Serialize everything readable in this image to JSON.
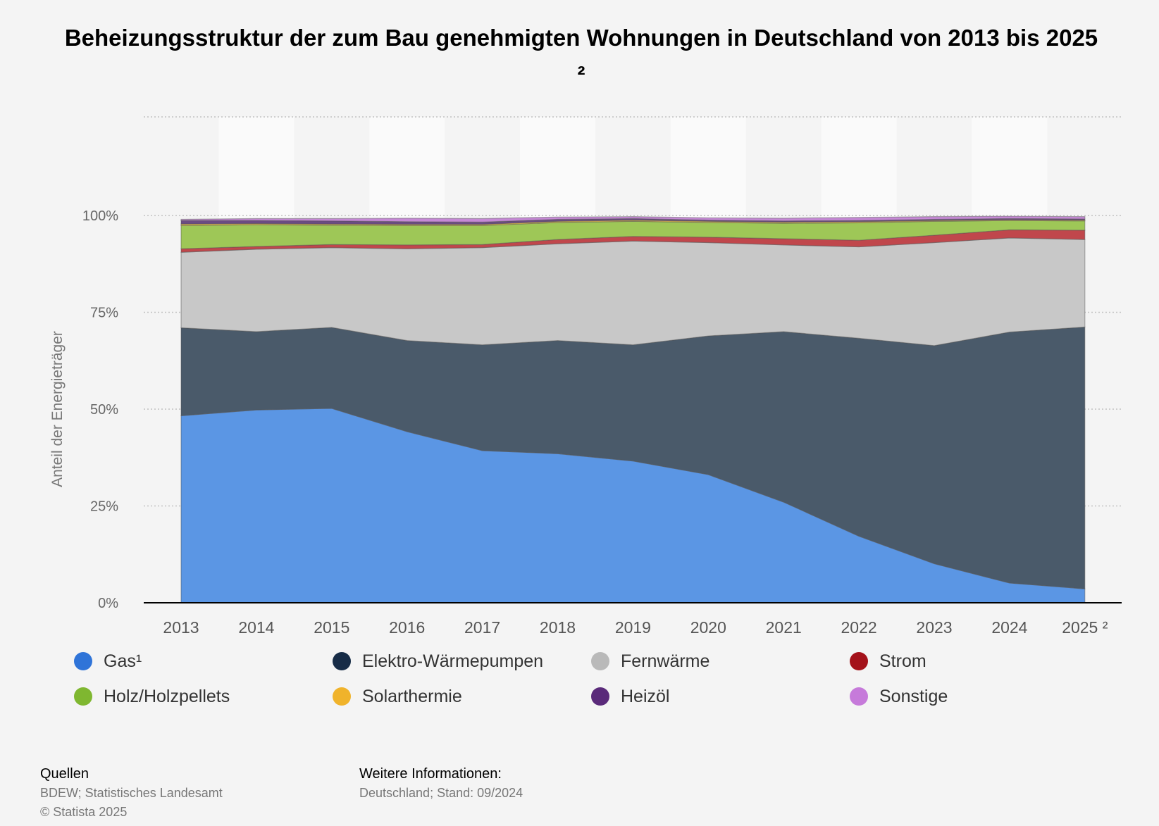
{
  "chart_data": {
    "type": "area",
    "stacked": true,
    "title": "Beheizungsstruktur der zum Bau genehmigten Wohnungen in Deutschland von 2013 bis 2025 ²",
    "ylabel": "Anteil der Energieträger",
    "xlabel": "",
    "ylim": [
      0,
      100
    ],
    "yticks": [
      "0%",
      "25%",
      "50%",
      "75%",
      "100%"
    ],
    "ytick_values": [
      0,
      25,
      50,
      75,
      100
    ],
    "categories": [
      "2013",
      "2014",
      "2015",
      "2016",
      "2017",
      "2018",
      "2019",
      "2020",
      "2021",
      "2022",
      "2023",
      "2024",
      "2025 ²"
    ],
    "grid": true,
    "legend_position": "bottom",
    "series": [
      {
        "name": "Gas¹",
        "color": "#5b96e4",
        "legend_color": "#2f74d8",
        "values": [
          48.3,
          49.8,
          50.2,
          44.2,
          39.3,
          38.5,
          36.6,
          33.1,
          26.0,
          17.2,
          10.1,
          5.1,
          3.6
        ]
      },
      {
        "name": "Elektro-Wärmepumpen",
        "color": "#4a5a6a",
        "legend_color": "#172c47",
        "values": [
          22.7,
          20.2,
          20.9,
          23.5,
          27.3,
          29.2,
          30.0,
          35.8,
          44.0,
          51.1,
          56.3,
          64.8,
          67.6
        ]
      },
      {
        "name": "Fernwärme",
        "color": "#c8c8c8",
        "legend_color": "#b9b9b9",
        "values": [
          19.5,
          21.3,
          20.6,
          23.7,
          25.1,
          25.0,
          26.8,
          24.1,
          22.4,
          23.6,
          26.6,
          24.3,
          22.6
        ]
      },
      {
        "name": "Strom",
        "color": "#c0474c",
        "legend_color": "#a4121a",
        "values": [
          0.9,
          0.7,
          0.8,
          1.0,
          0.8,
          1.1,
          1.2,
          1.4,
          1.6,
          1.7,
          1.9,
          2.1,
          2.4
        ]
      },
      {
        "name": "Holz/Holzpellets",
        "color": "#9ec757",
        "legend_color": "#7fb730",
        "values": [
          6.0,
          5.6,
          5.0,
          5.0,
          4.9,
          4.4,
          3.9,
          3.8,
          4.0,
          4.5,
          3.6,
          2.4,
          2.4
        ]
      },
      {
        "name": "Solarthermie",
        "color": "#e8bf4a",
        "legend_color": "#f0b32b",
        "values": [
          0.4,
          0.3,
          0.3,
          0.3,
          0.3,
          0.3,
          0.3,
          0.3,
          0.3,
          0.3,
          0.2,
          0.2,
          0.2
        ]
      },
      {
        "name": "Heizöl",
        "color": "#6b4b82",
        "legend_color": "#5a2a7a",
        "values": [
          0.9,
          0.8,
          0.8,
          0.7,
          0.6,
          0.5,
          0.4,
          0.3,
          0.3,
          0.3,
          0.3,
          0.3,
          0.3
        ]
      },
      {
        "name": "Sonstige",
        "color": "#c689d6",
        "legend_color": "#c67ada",
        "values": [
          0.3,
          0.5,
          0.6,
          0.9,
          0.9,
          0.6,
          0.5,
          0.6,
          0.7,
          0.8,
          0.7,
          0.6,
          0.6
        ]
      }
    ]
  },
  "footer": {
    "sources_title": "Quellen",
    "sources_line1": "BDEW; Statistisches Landesamt",
    "sources_line2": "© Statista 2025",
    "info_title": "Weitere Informationen:",
    "info_line1": "Deutschland; Stand: 09/2024"
  }
}
